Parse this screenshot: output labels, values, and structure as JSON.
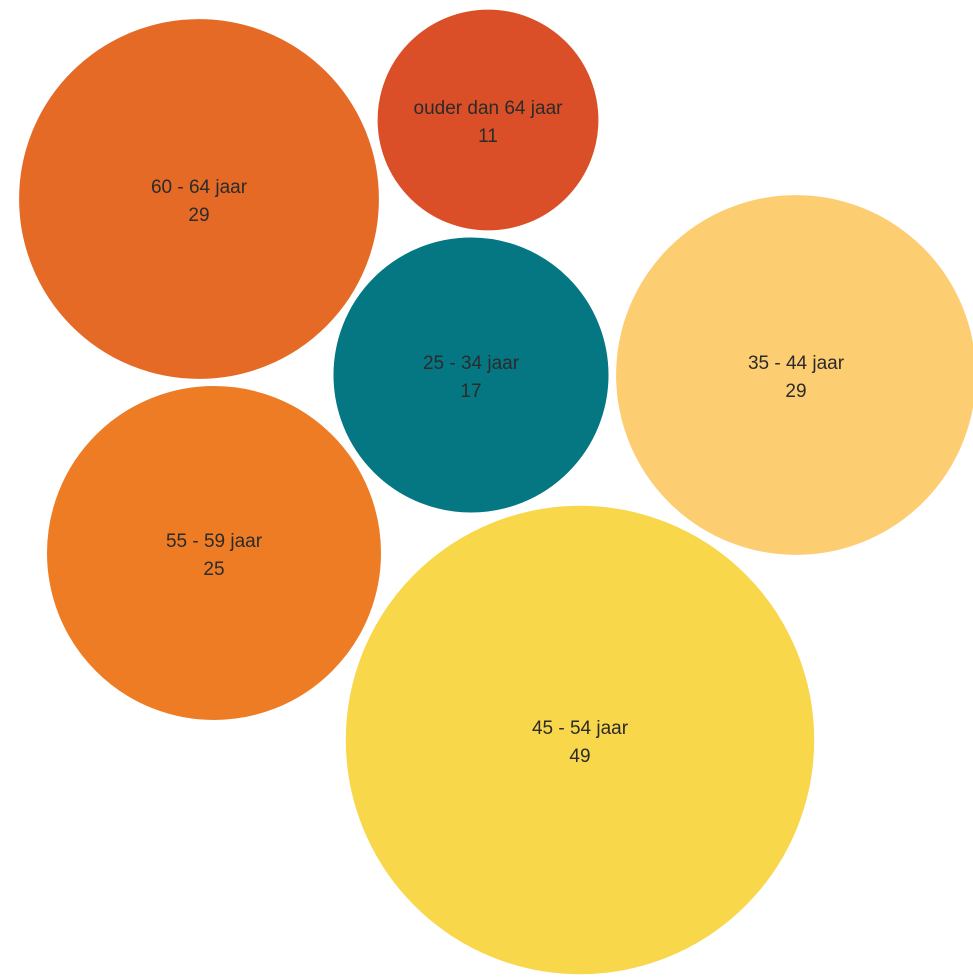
{
  "chart_data": {
    "type": "bubble",
    "title": "",
    "grid": false,
    "legend": "none",
    "bubbles": [
      {
        "label": "60 - 64 jaar",
        "value": 29,
        "color": "#E46A25"
      },
      {
        "label": "ouder dan 64 jaar",
        "value": 11,
        "color": "#DA4F27"
      },
      {
        "label": "25 - 34 jaar",
        "value": 17,
        "color": "#047783"
      },
      {
        "label": "35 - 44 jaar",
        "value": 29,
        "color": "#FDCD71"
      },
      {
        "label": "55 - 59 jaar",
        "value": 25,
        "color": "#EE7C25"
      },
      {
        "label": "45 - 54 jaar",
        "value": 49,
        "color": "#F8D74A"
      }
    ]
  }
}
